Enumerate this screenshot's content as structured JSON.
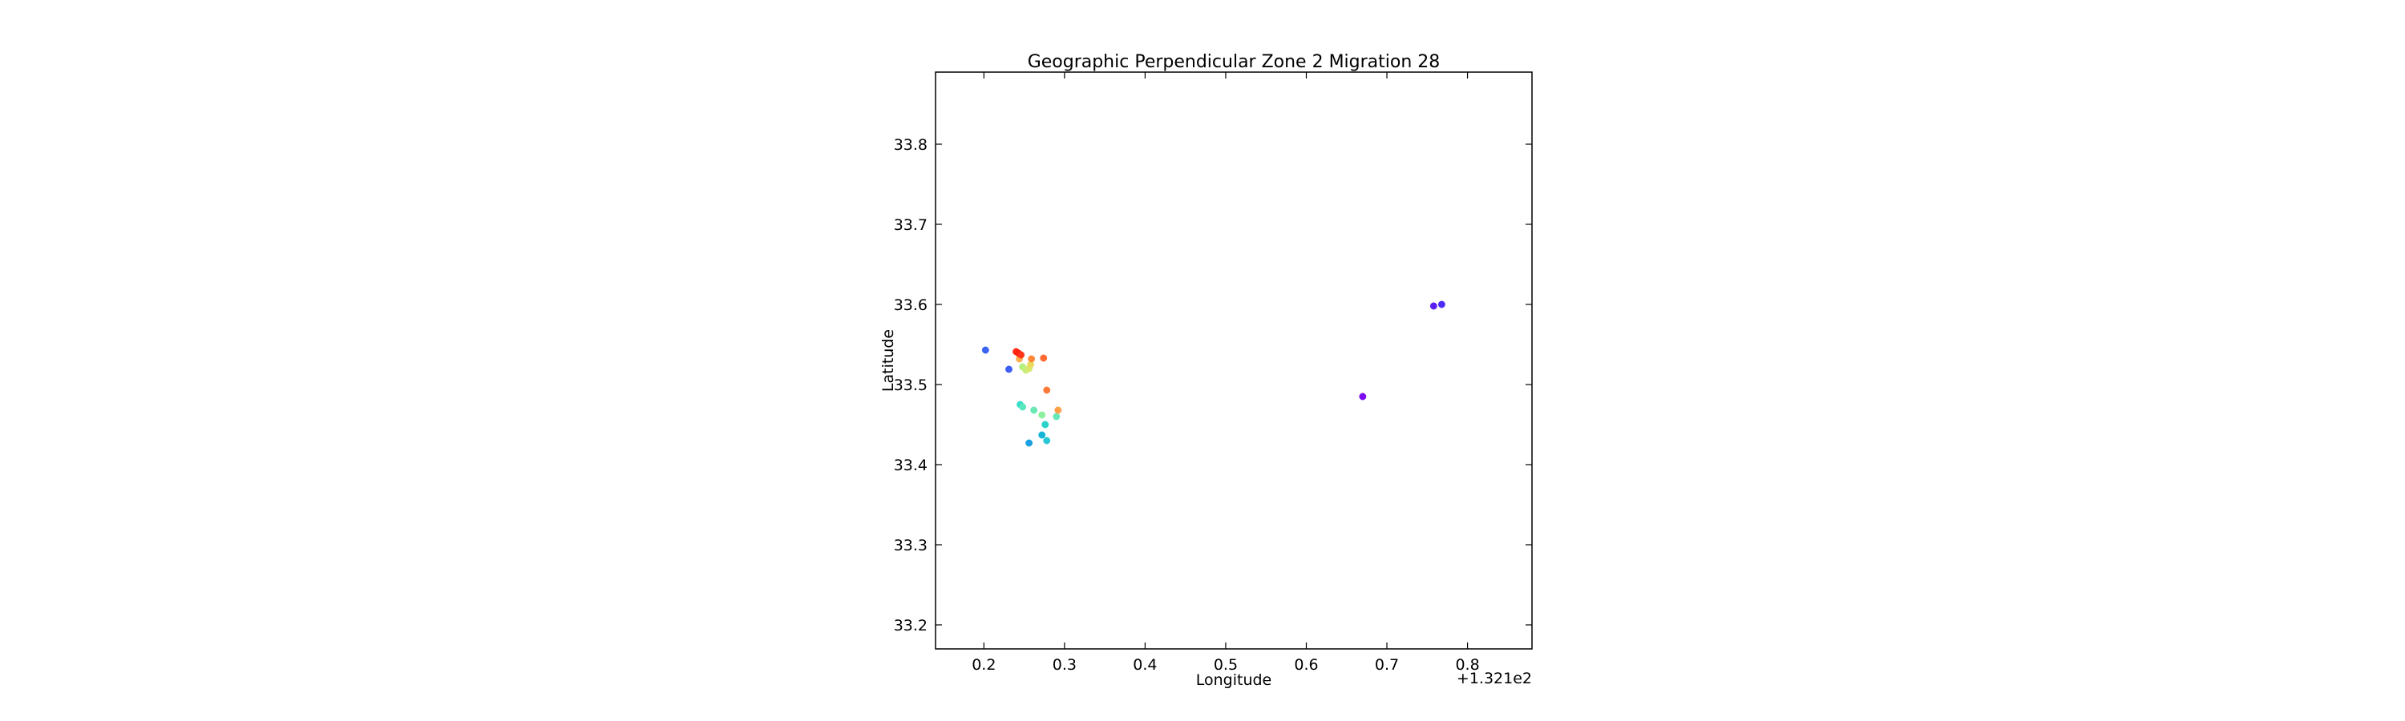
{
  "chart_data": {
    "type": "scatter",
    "title": "Geographic Perpendicular Zone 2 Migration 28",
    "xlabel": "Longitude",
    "ylabel": "Latitude",
    "x_offset_label": "+1.321e2",
    "xlim": [
      0.14,
      0.88
    ],
    "ylim": [
      33.17,
      33.89
    ],
    "xticks": [
      0.2,
      0.3,
      0.4,
      0.5,
      0.6,
      0.7,
      0.8
    ],
    "xtick_labels": [
      "0.2",
      "0.3",
      "0.4",
      "0.5",
      "0.6",
      "0.7",
      "0.8"
    ],
    "yticks": [
      33.2,
      33.3,
      33.4,
      33.5,
      33.6,
      33.7,
      33.8
    ],
    "ytick_labels": [
      "33.2",
      "33.3",
      "33.4",
      "33.5",
      "33.6",
      "33.7",
      "33.8"
    ],
    "grid": false,
    "colormap": "rainbow",
    "points": [
      {
        "x": 0.758,
        "y": 33.598,
        "color": "#5a1ff5"
      },
      {
        "x": 0.768,
        "y": 33.6,
        "color": "#4b2cf8"
      },
      {
        "x": 0.67,
        "y": 33.485,
        "color": "#7a0cef"
      },
      {
        "x": 0.202,
        "y": 33.543,
        "color": "#3a64f2"
      },
      {
        "x": 0.231,
        "y": 33.519,
        "color": "#3e5ef4"
      },
      {
        "x": 0.256,
        "y": 33.427,
        "color": "#1a9fe2"
      },
      {
        "x": 0.272,
        "y": 33.437,
        "color": "#14b5d9"
      },
      {
        "x": 0.278,
        "y": 33.43,
        "color": "#28c8d6"
      },
      {
        "x": 0.276,
        "y": 33.45,
        "color": "#2ad2c8"
      },
      {
        "x": 0.245,
        "y": 33.475,
        "color": "#36ddc8"
      },
      {
        "x": 0.248,
        "y": 33.472,
        "color": "#5ae6be"
      },
      {
        "x": 0.262,
        "y": 33.468,
        "color": "#6ae8b4"
      },
      {
        "x": 0.272,
        "y": 33.462,
        "color": "#8cf0a0"
      },
      {
        "x": 0.29,
        "y": 33.46,
        "color": "#66e8b8"
      },
      {
        "x": 0.248,
        "y": 33.522,
        "color": "#b4f080"
      },
      {
        "x": 0.252,
        "y": 33.518,
        "color": "#c8ee78"
      },
      {
        "x": 0.256,
        "y": 33.52,
        "color": "#d8e86c"
      },
      {
        "x": 0.258,
        "y": 33.525,
        "color": "#e8dc60"
      },
      {
        "x": 0.244,
        "y": 33.532,
        "color": "#ffb050"
      },
      {
        "x": 0.259,
        "y": 33.532,
        "color": "#ff8a3c"
      },
      {
        "x": 0.274,
        "y": 33.533,
        "color": "#ff6a32"
      },
      {
        "x": 0.278,
        "y": 33.493,
        "color": "#ff7a38"
      },
      {
        "x": 0.292,
        "y": 33.468,
        "color": "#ffa048"
      },
      {
        "x": 0.24,
        "y": 33.541,
        "color": "#ff2a14"
      },
      {
        "x": 0.243,
        "y": 33.539,
        "color": "#ff1e10"
      },
      {
        "x": 0.246,
        "y": 33.537,
        "color": "#ff3418"
      }
    ]
  }
}
